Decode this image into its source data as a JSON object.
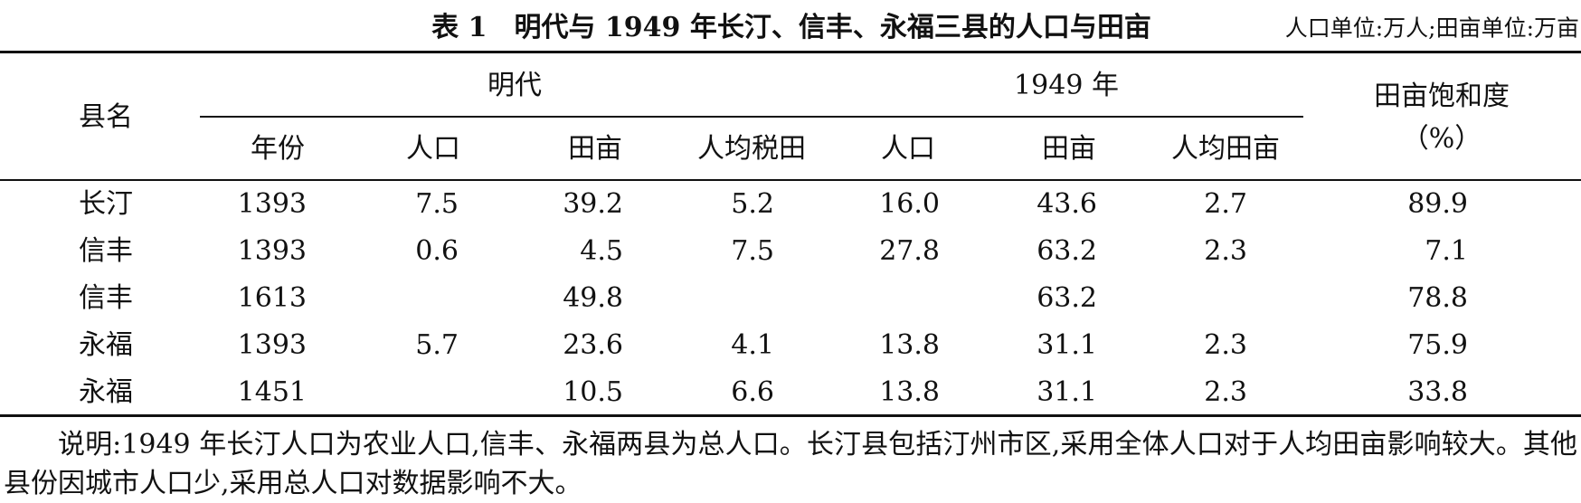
{
  "title": "表 1　明代与 1949 年长汀、信丰、永福三县的人口与田亩",
  "unit_note": "人口单位:万人;田亩单位:万亩",
  "header": {
    "county": "县名",
    "ming": "明代",
    "y1949": "1949 年",
    "saturation": "田亩饱和度",
    "saturation_unit": "（%）",
    "columns": [
      "年份",
      "人口",
      "田亩",
      "人均税田",
      "人口",
      "田亩",
      "人均田亩"
    ]
  },
  "table": {
    "rows": [
      [
        "长汀",
        "1393",
        "7.5",
        "39.2",
        "5.2",
        "16.0",
        "43.6",
        "2.7",
        "89.9"
      ],
      [
        "信丰",
        "1393",
        "0.6",
        "4.5",
        "7.5",
        "27.8",
        "63.2",
        "2.3",
        "7.1"
      ],
      [
        "信丰",
        "1613",
        null,
        "49.8",
        null,
        null,
        "63.2",
        null,
        "78.8"
      ],
      [
        "永福",
        "1393",
        "5.7",
        "23.6",
        "4.1",
        "13.8",
        "31.1",
        "2.3",
        "75.9"
      ],
      [
        "永福",
        "1451",
        null,
        "10.5",
        "6.6",
        "13.8",
        "31.1",
        "2.3",
        "33.8"
      ]
    ]
  },
  "note": "说明:1949 年长汀人口为农业人口,信丰、永福两县为总人口。长汀县包括汀州市区,采用全体人口对于人均田亩影响较大。其他县份因城市人口少,采用总人口对数据影响不大。"
}
